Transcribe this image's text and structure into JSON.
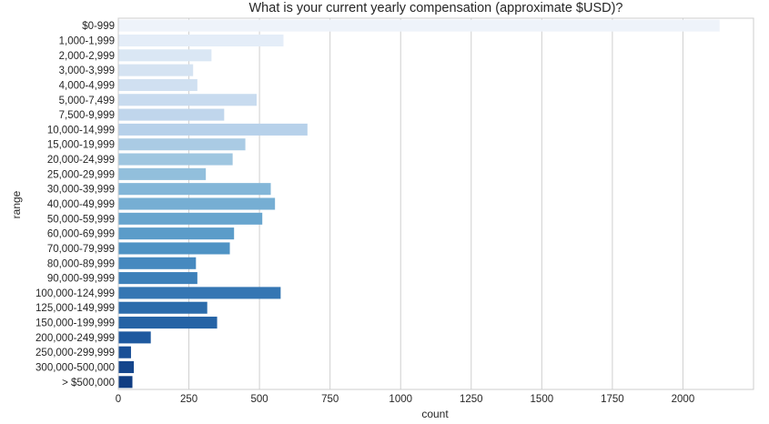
{
  "chart_data": {
    "type": "bar",
    "orientation": "horizontal",
    "title": "What is your current yearly compensation (approximate $USD)?",
    "xlabel": "count",
    "ylabel": "range",
    "xlim": [
      0,
      2250
    ],
    "xticks": [
      0,
      250,
      500,
      750,
      1000,
      1250,
      1500,
      1750,
      2000
    ],
    "grid": "vertical",
    "palette": "Blues",
    "categories": [
      "$0-999",
      "1,000-1,999",
      "2,000-2,999",
      "3,000-3,999",
      "4,000-4,999",
      "5,000-7,499",
      "7,500-9,999",
      "10,000-14,999",
      "15,000-19,999",
      "20,000-24,999",
      "25,000-29,999",
      "30,000-39,999",
      "40,000-49,999",
      "50,000-59,999",
      "60,000-69,999",
      "70,000-79,999",
      "80,000-89,999",
      "90,000-99,999",
      "100,000-124,999",
      "125,000-149,999",
      "150,000-199,999",
      "200,000-249,999",
      "250,000-299,999",
      "300,000-500,000",
      "> $500,000"
    ],
    "values": [
      2130,
      585,
      330,
      265,
      280,
      490,
      375,
      670,
      450,
      405,
      310,
      540,
      555,
      510,
      410,
      395,
      275,
      280,
      575,
      315,
      350,
      115,
      45,
      55,
      50
    ],
    "colors": [
      "#eef3fa",
      "#e4edf8",
      "#dae7f4",
      "#d5e3f2",
      "#d0e0f1",
      "#c8dbef",
      "#c0d6ec",
      "#b7d1ea",
      "#aacbe4",
      "#9fc6e0",
      "#92bfdc",
      "#83b6d8",
      "#76aed3",
      "#68a5ce",
      "#5b9cc9",
      "#4f93c4",
      "#4689bf",
      "#3d80b9",
      "#3576b3",
      "#2c6cab",
      "#2563a5",
      "#1e599f",
      "#194f96",
      "#15468c",
      "#103d82"
    ]
  }
}
